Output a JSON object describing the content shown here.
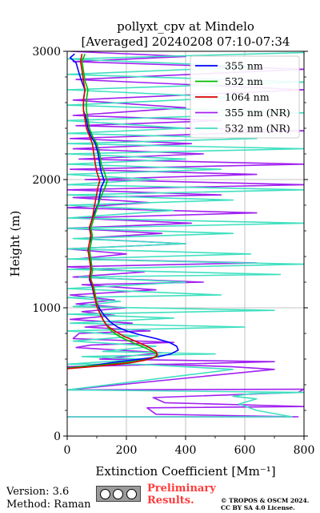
{
  "chart_data": {
    "type": "line",
    "title": "pollyxt_cpv at Mindelo",
    "subtitle": "[Averaged] 20240208 07:10-07:34",
    "xlabel": "Extinction Coefficient [Mm⁻¹]",
    "ylabel": "Height (m)",
    "xlim": [
      0,
      800
    ],
    "ylim": [
      0,
      3000
    ],
    "x_ticks": [
      "0",
      "200",
      "400",
      "600",
      "800"
    ],
    "y_ticks": [
      "0",
      "1000",
      "2000",
      "3000"
    ],
    "grid": true,
    "legend_position": "top-right",
    "series": [
      {
        "name": "355 nm",
        "color": "#0000ff",
        "points": [
          [
            0,
            530
          ],
          [
            80,
            550
          ],
          [
            160,
            575
          ],
          [
            230,
            595
          ],
          [
            300,
            615
          ],
          [
            350,
            640
          ],
          [
            375,
            670
          ],
          [
            370,
            700
          ],
          [
            345,
            730
          ],
          [
            300,
            760
          ],
          [
            245,
            790
          ],
          [
            200,
            820
          ],
          [
            170,
            850
          ],
          [
            145,
            890
          ],
          [
            125,
            940
          ],
          [
            110,
            990
          ],
          [
            100,
            1040
          ],
          [
            90,
            1100
          ],
          [
            85,
            1160
          ],
          [
            75,
            1220
          ],
          [
            80,
            1290
          ],
          [
            80,
            1380
          ],
          [
            75,
            1450
          ],
          [
            80,
            1500
          ],
          [
            80,
            1560
          ],
          [
            75,
            1620
          ],
          [
            85,
            1700
          ],
          [
            95,
            1760
          ],
          [
            105,
            1810
          ],
          [
            110,
            1880
          ],
          [
            115,
            1940
          ],
          [
            125,
            1990
          ],
          [
            115,
            2060
          ],
          [
            110,
            2120
          ],
          [
            105,
            2200
          ],
          [
            95,
            2280
          ],
          [
            80,
            2340
          ],
          [
            70,
            2400
          ],
          [
            65,
            2470
          ],
          [
            55,
            2540
          ],
          [
            55,
            2620
          ],
          [
            60,
            2700
          ],
          [
            50,
            2760
          ],
          [
            40,
            2830
          ],
          [
            30,
            2910
          ],
          [
            10,
            2950
          ],
          [
            25,
            2980
          ]
        ]
      },
      {
        "name": "532 nm",
        "color": "#00bb00",
        "points": [
          [
            0,
            530
          ],
          [
            70,
            545
          ],
          [
            140,
            560
          ],
          [
            200,
            575
          ],
          [
            250,
            590
          ],
          [
            285,
            605
          ],
          [
            305,
            620
          ],
          [
            300,
            645
          ],
          [
            270,
            680
          ],
          [
            230,
            720
          ],
          [
            190,
            760
          ],
          [
            160,
            800
          ],
          [
            140,
            840
          ],
          [
            125,
            890
          ],
          [
            115,
            940
          ],
          [
            105,
            990
          ],
          [
            100,
            1040
          ],
          [
            95,
            1100
          ],
          [
            90,
            1160
          ],
          [
            80,
            1220
          ],
          [
            85,
            1290
          ],
          [
            80,
            1380
          ],
          [
            75,
            1440
          ],
          [
            80,
            1500
          ],
          [
            85,
            1560
          ],
          [
            80,
            1620
          ],
          [
            90,
            1700
          ],
          [
            100,
            1770
          ],
          [
            110,
            1840
          ],
          [
            120,
            1900
          ],
          [
            130,
            1950
          ],
          [
            135,
            1990
          ],
          [
            125,
            2060
          ],
          [
            115,
            2120
          ],
          [
            110,
            2200
          ],
          [
            100,
            2280
          ],
          [
            85,
            2340
          ],
          [
            75,
            2400
          ],
          [
            70,
            2470
          ],
          [
            65,
            2540
          ],
          [
            65,
            2620
          ],
          [
            70,
            2700
          ],
          [
            60,
            2770
          ],
          [
            55,
            2850
          ],
          [
            50,
            2920
          ],
          [
            60,
            2980
          ]
        ]
      },
      {
        "name": "1064 nm",
        "color": "#dd0000",
        "points": [
          [
            0,
            525
          ],
          [
            80,
            540
          ],
          [
            150,
            555
          ],
          [
            210,
            570
          ],
          [
            260,
            590
          ],
          [
            290,
            610
          ],
          [
            305,
            630
          ],
          [
            300,
            660
          ],
          [
            270,
            700
          ],
          [
            230,
            740
          ],
          [
            190,
            780
          ],
          [
            160,
            820
          ],
          [
            135,
            860
          ],
          [
            120,
            910
          ],
          [
            110,
            960
          ],
          [
            100,
            1010
          ],
          [
            95,
            1060
          ],
          [
            90,
            1120
          ],
          [
            85,
            1180
          ],
          [
            75,
            1240
          ],
          [
            80,
            1300
          ],
          [
            75,
            1380
          ],
          [
            70,
            1450
          ],
          [
            75,
            1510
          ],
          [
            80,
            1570
          ],
          [
            75,
            1630
          ],
          [
            85,
            1700
          ],
          [
            90,
            1770
          ],
          [
            95,
            1830
          ],
          [
            100,
            1890
          ],
          [
            105,
            1950
          ],
          [
            110,
            1990
          ],
          [
            100,
            2060
          ],
          [
            95,
            2120
          ],
          [
            90,
            2200
          ],
          [
            85,
            2280
          ],
          [
            75,
            2340
          ],
          [
            65,
            2400
          ],
          [
            60,
            2470
          ],
          [
            55,
            2540
          ],
          [
            55,
            2620
          ],
          [
            60,
            2700
          ],
          [
            55,
            2770
          ],
          [
            50,
            2850
          ],
          [
            45,
            2920
          ],
          [
            50,
            2980
          ]
        ]
      },
      {
        "name": "355 nm (NR)",
        "color": "#a020f0",
        "points": [
          [
            0,
            150
          ],
          [
            780,
            150
          ],
          [
            300,
            170
          ],
          [
            270,
            220
          ],
          [
            800,
            230
          ],
          [
            330,
            260
          ],
          [
            290,
            300
          ],
          [
            780,
            340
          ],
          [
            800,
            365
          ],
          [
            0,
            360
          ],
          [
            700,
            520
          ],
          [
            560,
            540
          ],
          [
            310,
            560
          ],
          [
            0,
            540
          ],
          [
            700,
            580
          ],
          [
            110,
            600
          ],
          [
            320,
            650
          ],
          [
            30,
            690
          ],
          [
            80,
            710
          ],
          [
            360,
            730
          ],
          [
            20,
            760
          ],
          [
            40,
            800
          ],
          [
            280,
            820
          ],
          [
            60,
            850
          ],
          [
            220,
            880
          ],
          [
            10,
            910
          ],
          [
            160,
            940
          ],
          [
            50,
            970
          ],
          [
            200,
            1000
          ],
          [
            30,
            1030
          ],
          [
            160,
            1060
          ],
          [
            10,
            1100
          ],
          [
            300,
            1140
          ],
          [
            50,
            1180
          ],
          [
            460,
            1200
          ],
          [
            20,
            1240
          ],
          [
            260,
            1280
          ],
          [
            0,
            1320
          ],
          [
            640,
            1350
          ],
          [
            30,
            1380
          ],
          [
            200,
            1420
          ],
          [
            0,
            1460
          ],
          [
            400,
            1500
          ],
          [
            40,
            1540
          ],
          [
            320,
            1580
          ],
          [
            0,
            1620
          ],
          [
            420,
            1660
          ],
          [
            20,
            1700
          ],
          [
            640,
            1740
          ],
          [
            0,
            1780
          ],
          [
            280,
            1820
          ],
          [
            20,
            1860
          ],
          [
            520,
            1880
          ],
          [
            0,
            1920
          ],
          [
            800,
            1960
          ],
          [
            60,
            2000
          ],
          [
            640,
            2040
          ],
          [
            10,
            2080
          ],
          [
            800,
            2120
          ],
          [
            40,
            2160
          ],
          [
            460,
            2200
          ],
          [
            20,
            2240
          ],
          [
            420,
            2280
          ],
          [
            10,
            2320
          ],
          [
            800,
            2380
          ],
          [
            30,
            2420
          ],
          [
            520,
            2460
          ],
          [
            20,
            2500
          ],
          [
            400,
            2560
          ],
          [
            20,
            2620
          ],
          [
            800,
            2700
          ],
          [
            30,
            2780
          ],
          [
            800,
            2860
          ],
          [
            20,
            2920
          ],
          [
            400,
            2960
          ],
          [
            10,
            3000
          ]
        ]
      },
      {
        "name": "532 nm (NR)",
        "color": "#40e0c0",
        "points": [
          [
            0,
            150
          ],
          [
            760,
            150
          ],
          [
            640,
            200
          ],
          [
            580,
            250
          ],
          [
            640,
            290
          ],
          [
            560,
            310
          ],
          [
            620,
            330
          ],
          [
            800,
            340
          ],
          [
            0,
            360
          ],
          [
            560,
            520
          ],
          [
            240,
            560
          ],
          [
            0,
            560
          ],
          [
            260,
            600
          ],
          [
            50,
            620
          ],
          [
            500,
            640
          ],
          [
            120,
            660
          ],
          [
            300,
            700
          ],
          [
            20,
            740
          ],
          [
            240,
            780
          ],
          [
            0,
            820
          ],
          [
            600,
            850
          ],
          [
            10,
            880
          ],
          [
            360,
            920
          ],
          [
            0,
            950
          ],
          [
            700,
            980
          ],
          [
            20,
            1010
          ],
          [
            180,
            1050
          ],
          [
            0,
            1080
          ],
          [
            520,
            1100
          ],
          [
            0,
            1150
          ],
          [
            400,
            1200
          ],
          [
            40,
            1240
          ],
          [
            720,
            1260
          ],
          [
            0,
            1300
          ],
          [
            800,
            1340
          ],
          [
            0,
            1380
          ],
          [
            620,
            1420
          ],
          [
            0,
            1460
          ],
          [
            400,
            1500
          ],
          [
            20,
            1540
          ],
          [
            560,
            1580
          ],
          [
            0,
            1620
          ],
          [
            800,
            1660
          ],
          [
            0,
            1700
          ],
          [
            360,
            1760
          ],
          [
            0,
            1800
          ],
          [
            560,
            1840
          ],
          [
            0,
            1880
          ],
          [
            800,
            1920
          ],
          [
            0,
            1960
          ],
          [
            300,
            2000
          ],
          [
            0,
            2040
          ],
          [
            520,
            2080
          ],
          [
            0,
            2120
          ],
          [
            400,
            2160
          ],
          [
            0,
            2200
          ],
          [
            800,
            2240
          ],
          [
            0,
            2280
          ],
          [
            640,
            2320
          ],
          [
            0,
            2360
          ],
          [
            400,
            2400
          ],
          [
            0,
            2460
          ],
          [
            800,
            2520
          ],
          [
            0,
            2580
          ],
          [
            560,
            2640
          ],
          [
            0,
            2700
          ],
          [
            800,
            2760
          ],
          [
            0,
            2820
          ],
          [
            640,
            2880
          ],
          [
            0,
            2940
          ],
          [
            800,
            2990
          ]
        ]
      }
    ]
  },
  "footer": {
    "version": "Version: 3.6",
    "method": "Method: Raman",
    "preliminary_line1": "Preliminary",
    "preliminary_line2": "Results.",
    "copyright_line1": "© TROPOS & OSCM 2024.",
    "copyright_line2": "CC BY SA 4.0 License."
  }
}
